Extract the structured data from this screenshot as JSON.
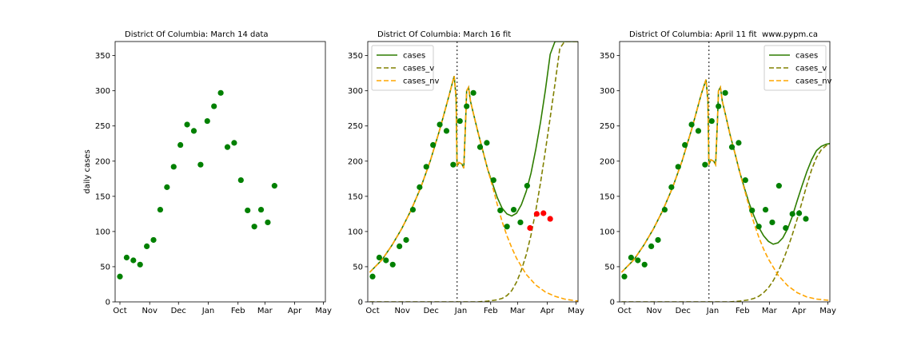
{
  "chart_data": [
    {
      "type": "scatter",
      "title": "District Of Columbia:  March 14 data",
      "ylabel": "daily cases",
      "xlabel": "",
      "xlim": [
        -5,
        214
      ],
      "ylim": [
        0,
        370
      ],
      "grid": false,
      "xticks": [
        {
          "label": "Oct",
          "day": 0
        },
        {
          "label": "Nov",
          "day": 31
        },
        {
          "label": "Dec",
          "day": 61
        },
        {
          "label": "Jan",
          "day": 92
        },
        {
          "label": "Feb",
          "day": 123
        },
        {
          "label": "Mar",
          "day": 151
        },
        {
          "label": "Apr",
          "day": 182
        },
        {
          "label": "May",
          "day": 212
        }
      ],
      "yticks": [
        0,
        50,
        100,
        150,
        200,
        250,
        300,
        350
      ],
      "points": [
        {
          "x": 0,
          "y": 36
        },
        {
          "x": 7,
          "y": 63
        },
        {
          "x": 14,
          "y": 59
        },
        {
          "x": 21,
          "y": 53
        },
        {
          "x": 28,
          "y": 79
        },
        {
          "x": 35,
          "y": 88
        },
        {
          "x": 42,
          "y": 131
        },
        {
          "x": 49,
          "y": 163
        },
        {
          "x": 56,
          "y": 192
        },
        {
          "x": 63,
          "y": 223
        },
        {
          "x": 70,
          "y": 252
        },
        {
          "x": 77,
          "y": 243
        },
        {
          "x": 84,
          "y": 195
        },
        {
          "x": 91,
          "y": 257
        },
        {
          "x": 98,
          "y": 278
        },
        {
          "x": 105,
          "y": 297
        },
        {
          "x": 112,
          "y": 220
        },
        {
          "x": 119,
          "y": 226
        },
        {
          "x": 126,
          "y": 173
        },
        {
          "x": 133,
          "y": 130
        },
        {
          "x": 140,
          "y": 107
        },
        {
          "x": 147,
          "y": 131
        },
        {
          "x": 154,
          "y": 113
        },
        {
          "x": 161,
          "y": 165
        }
      ],
      "point_color": "#008000",
      "extra_points": [],
      "vline": null,
      "series": [],
      "legend": null,
      "annotation": ""
    },
    {
      "type": "line",
      "title": "District Of Columbia:  March 16 fit",
      "ylabel": "",
      "xlabel": "",
      "xlim": [
        -5,
        214
      ],
      "ylim": [
        0,
        370
      ],
      "grid": false,
      "xticks": [
        {
          "label": "Oct",
          "day": 0
        },
        {
          "label": "Nov",
          "day": 31
        },
        {
          "label": "Dec",
          "day": 61
        },
        {
          "label": "Jan",
          "day": 92
        },
        {
          "label": "Feb",
          "day": 123
        },
        {
          "label": "Mar",
          "day": 151
        },
        {
          "label": "Apr",
          "day": 182
        },
        {
          "label": "May",
          "day": 212
        }
      ],
      "yticks": [
        0,
        50,
        100,
        150,
        200,
        250,
        300,
        350
      ],
      "points": [
        {
          "x": 0,
          "y": 36
        },
        {
          "x": 7,
          "y": 63
        },
        {
          "x": 14,
          "y": 59
        },
        {
          "x": 21,
          "y": 53
        },
        {
          "x": 28,
          "y": 79
        },
        {
          "x": 35,
          "y": 88
        },
        {
          "x": 42,
          "y": 131
        },
        {
          "x": 49,
          "y": 163
        },
        {
          "x": 56,
          "y": 192
        },
        {
          "x": 63,
          "y": 223
        },
        {
          "x": 70,
          "y": 252
        },
        {
          "x": 77,
          "y": 243
        },
        {
          "x": 84,
          "y": 195
        },
        {
          "x": 91,
          "y": 257
        },
        {
          "x": 98,
          "y": 278
        },
        {
          "x": 105,
          "y": 297
        },
        {
          "x": 112,
          "y": 220
        },
        {
          "x": 119,
          "y": 226
        },
        {
          "x": 126,
          "y": 173
        },
        {
          "x": 133,
          "y": 130
        },
        {
          "x": 140,
          "y": 107
        },
        {
          "x": 147,
          "y": 131
        },
        {
          "x": 154,
          "y": 113
        },
        {
          "x": 161,
          "y": 165
        }
      ],
      "point_color": "#008000",
      "extra_points": [
        {
          "x": 164,
          "y": 105
        },
        {
          "x": 171,
          "y": 125
        },
        {
          "x": 178,
          "y": 126
        },
        {
          "x": 185,
          "y": 118
        }
      ],
      "extra_point_color": "#ff0000",
      "vline": 88,
      "series": [
        {
          "name": "cases",
          "color": "#2e7d00",
          "dash": "solid",
          "x": [
            -3,
            10,
            20,
            30,
            40,
            50,
            60,
            70,
            80,
            85,
            87,
            88,
            90,
            93,
            95,
            97,
            98,
            100,
            102,
            105,
            110,
            115,
            120,
            125,
            130,
            135,
            140,
            145,
            150,
            155,
            160,
            165,
            170,
            175,
            180,
            185,
            190,
            195,
            200,
            205,
            210,
            214
          ],
          "y": [
            42,
            60,
            80,
            103,
            130,
            162,
            200,
            245,
            295,
            321,
            290,
            193,
            198,
            196,
            190,
            260,
            300,
            305,
            285,
            268,
            240,
            214,
            188,
            168,
            148,
            133,
            125,
            122,
            126,
            138,
            157,
            183,
            217,
            256,
            301,
            352,
            370,
            370,
            370,
            370,
            370,
            370
          ]
        },
        {
          "name": "cases_v",
          "color": "#808000",
          "dash": "dashed",
          "x": [
            -3,
            20,
            50,
            80,
            100,
            110,
            120,
            130,
            135,
            140,
            145,
            150,
            155,
            160,
            165,
            170,
            175,
            180,
            185,
            190,
            195,
            200,
            205,
            210,
            214
          ],
          "y": [
            0,
            0,
            0,
            0,
            0,
            0,
            1,
            3,
            5,
            9,
            16,
            28,
            45,
            67,
            95,
            130,
            170,
            215,
            262,
            310,
            360,
            370,
            370,
            370,
            370
          ]
        },
        {
          "name": "cases_nv",
          "color": "#ffa500",
          "dash": "dashed",
          "x": [
            -3,
            10,
            20,
            30,
            40,
            50,
            60,
            70,
            80,
            85,
            87,
            88,
            90,
            93,
            95,
            97,
            98,
            100,
            102,
            105,
            110,
            115,
            120,
            125,
            130,
            135,
            140,
            145,
            150,
            160,
            170,
            180,
            190,
            200,
            214
          ],
          "y": [
            42,
            60,
            80,
            103,
            130,
            162,
            200,
            245,
            295,
            321,
            290,
            193,
            198,
            196,
            190,
            260,
            300,
            305,
            285,
            268,
            240,
            214,
            188,
            164,
            138,
            114,
            94,
            77,
            62,
            39,
            24,
            14,
            8,
            4,
            1
          ]
        }
      ],
      "legend": {
        "placement": "upper-left"
      },
      "annotation": ""
    },
    {
      "type": "line",
      "title": "District Of Columbia:  April 11 fit",
      "ylabel": "",
      "xlabel": "",
      "xlim": [
        -5,
        214
      ],
      "ylim": [
        0,
        370
      ],
      "grid": false,
      "xticks": [
        {
          "label": "Oct",
          "day": 0
        },
        {
          "label": "Nov",
          "day": 31
        },
        {
          "label": "Dec",
          "day": 61
        },
        {
          "label": "Jan",
          "day": 92
        },
        {
          "label": "Feb",
          "day": 123
        },
        {
          "label": "Mar",
          "day": 151
        },
        {
          "label": "Apr",
          "day": 182
        },
        {
          "label": "May",
          "day": 212
        }
      ],
      "yticks": [
        0,
        50,
        100,
        150,
        200,
        250,
        300,
        350
      ],
      "points": [
        {
          "x": 0,
          "y": 36
        },
        {
          "x": 7,
          "y": 63
        },
        {
          "x": 14,
          "y": 59
        },
        {
          "x": 21,
          "y": 53
        },
        {
          "x": 28,
          "y": 79
        },
        {
          "x": 35,
          "y": 88
        },
        {
          "x": 42,
          "y": 131
        },
        {
          "x": 49,
          "y": 163
        },
        {
          "x": 56,
          "y": 192
        },
        {
          "x": 63,
          "y": 223
        },
        {
          "x": 70,
          "y": 252
        },
        {
          "x": 77,
          "y": 243
        },
        {
          "x": 84,
          "y": 195
        },
        {
          "x": 91,
          "y": 257
        },
        {
          "x": 98,
          "y": 278
        },
        {
          "x": 105,
          "y": 297
        },
        {
          "x": 112,
          "y": 220
        },
        {
          "x": 119,
          "y": 226
        },
        {
          "x": 126,
          "y": 173
        },
        {
          "x": 133,
          "y": 130
        },
        {
          "x": 140,
          "y": 107
        },
        {
          "x": 147,
          "y": 131
        },
        {
          "x": 154,
          "y": 113
        },
        {
          "x": 161,
          "y": 165
        },
        {
          "x": 168,
          "y": 105
        },
        {
          "x": 175,
          "y": 125
        },
        {
          "x": 182,
          "y": 126
        },
        {
          "x": 189,
          "y": 118
        }
      ],
      "point_color": "#008000",
      "extra_points": [],
      "vline": 88,
      "series": [
        {
          "name": "cases",
          "color": "#2e7d00",
          "dash": "solid",
          "x": [
            -3,
            10,
            20,
            30,
            40,
            50,
            60,
            70,
            80,
            85,
            87,
            88,
            90,
            93,
            95,
            97,
            98,
            100,
            102,
            105,
            110,
            115,
            120,
            125,
            130,
            135,
            140,
            145,
            150,
            155,
            160,
            165,
            170,
            175,
            180,
            185,
            190,
            195,
            200,
            205,
            210,
            214
          ],
          "y": [
            42,
            60,
            80,
            103,
            130,
            162,
            200,
            245,
            295,
            316,
            285,
            195,
            202,
            200,
            195,
            260,
            300,
            305,
            285,
            268,
            238,
            212,
            185,
            162,
            140,
            122,
            106,
            94,
            86,
            82,
            84,
            91,
            104,
            122,
            144,
            165,
            185,
            202,
            215,
            221,
            224,
            225
          ]
        },
        {
          "name": "cases_v",
          "color": "#808000",
          "dash": "dashed",
          "x": [
            -3,
            20,
            50,
            80,
            100,
            110,
            120,
            130,
            135,
            140,
            145,
            150,
            155,
            160,
            165,
            170,
            175,
            180,
            185,
            190,
            195,
            200,
            205,
            210,
            214
          ],
          "y": [
            0,
            0,
            0,
            0,
            0,
            0,
            1,
            3,
            5,
            8,
            13,
            20,
            30,
            43,
            58,
            76,
            96,
            118,
            142,
            166,
            188,
            205,
            216,
            222,
            224
          ]
        },
        {
          "name": "cases_nv",
          "color": "#ffa500",
          "dash": "dashed",
          "x": [
            -3,
            10,
            20,
            30,
            40,
            50,
            60,
            70,
            80,
            85,
            87,
            88,
            90,
            93,
            95,
            97,
            98,
            100,
            102,
            105,
            110,
            115,
            120,
            125,
            130,
            135,
            140,
            145,
            150,
            160,
            170,
            180,
            190,
            200,
            214
          ],
          "y": [
            42,
            60,
            80,
            103,
            130,
            162,
            200,
            245,
            295,
            316,
            285,
            195,
            202,
            200,
            195,
            260,
            300,
            305,
            285,
            268,
            238,
            212,
            185,
            160,
            135,
            112,
            92,
            75,
            61,
            38,
            23,
            13,
            7,
            4,
            2
          ]
        }
      ],
      "legend": {
        "placement": "upper-right"
      },
      "annotation": "www.pypm.ca"
    }
  ]
}
